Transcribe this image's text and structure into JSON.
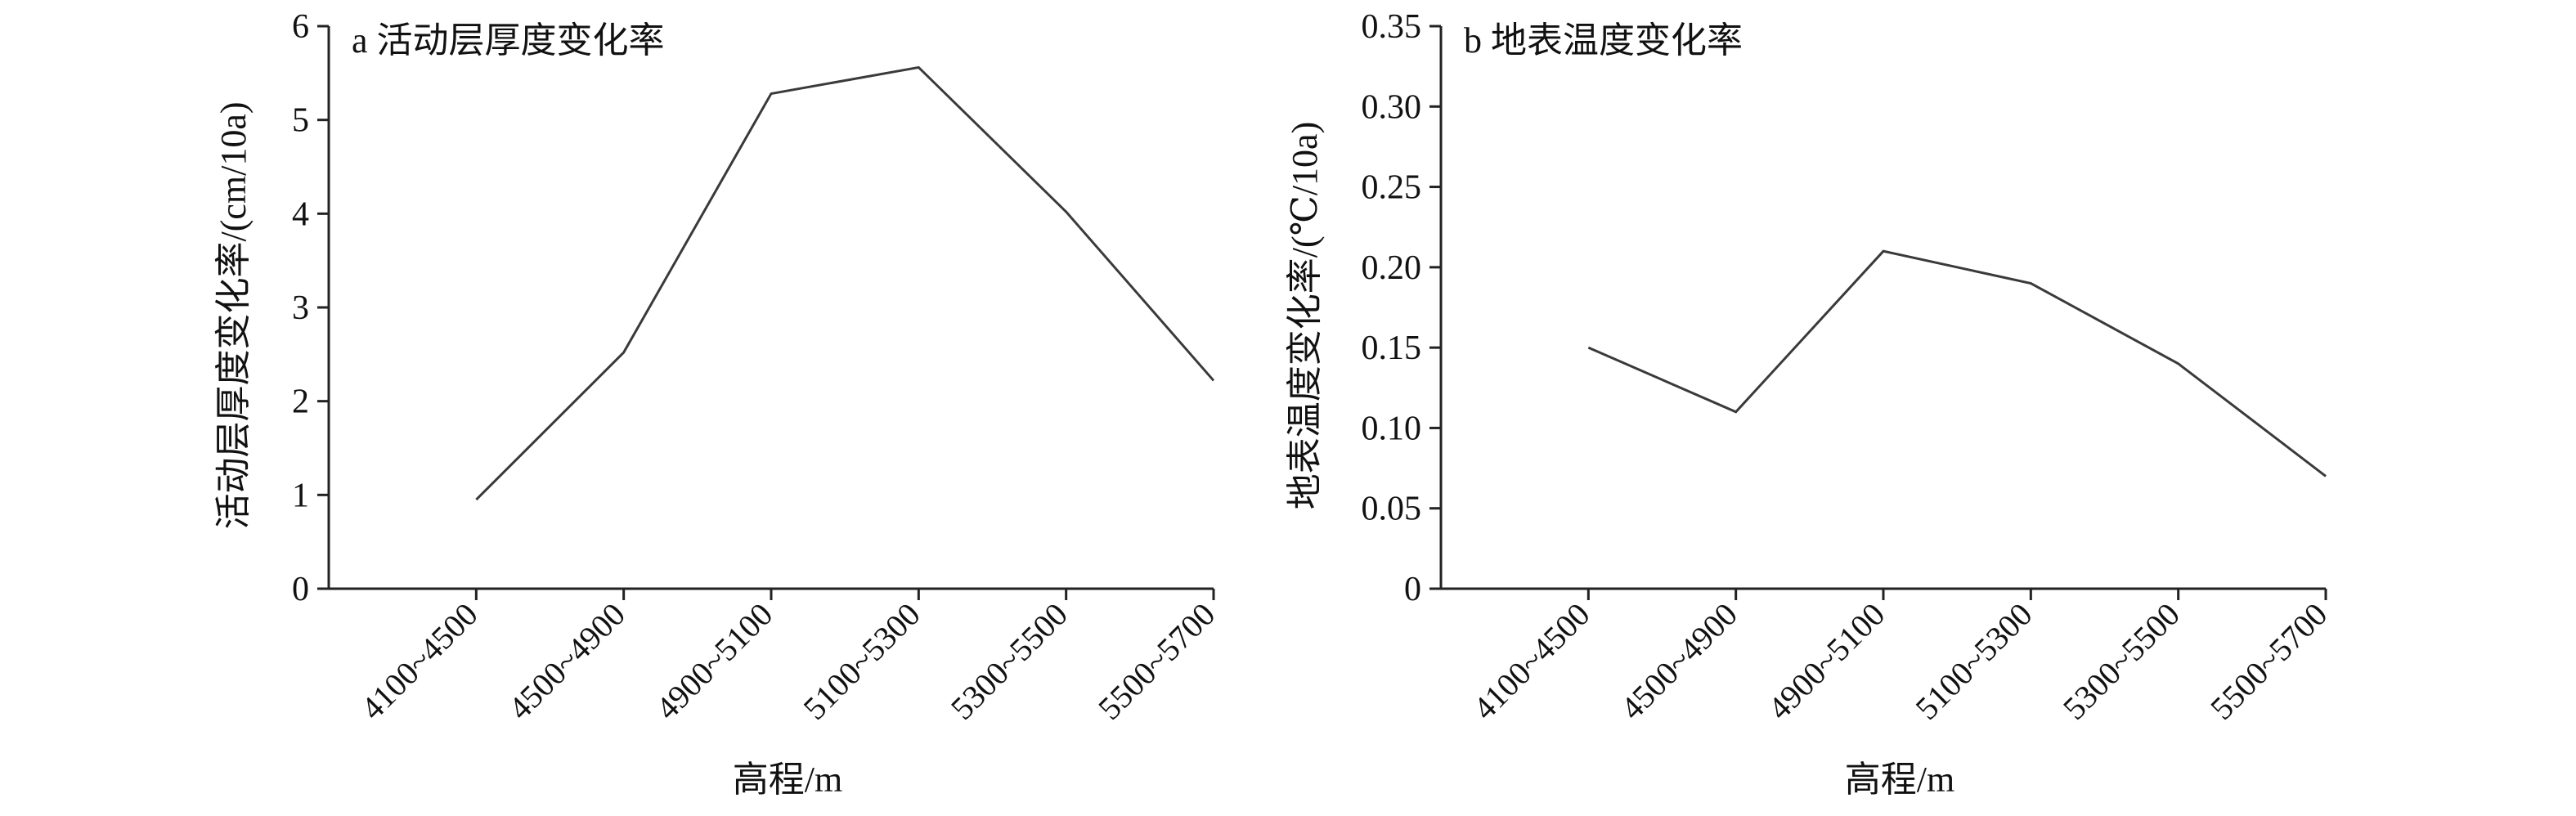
{
  "chart_data": [
    {
      "type": "line",
      "title": "a 活动层厚度变化率",
      "xlabel": "高程/m",
      "ylabel": "活动层厚度变化率/(cm/10a)",
      "categories": [
        "4100~4500",
        "4500~4900",
        "4900~5100",
        "5100~5300",
        "5300~5500",
        "5500~5700"
      ],
      "values": [
        0.95,
        2.52,
        5.28,
        5.56,
        4.02,
        2.22
      ],
      "ylim": [
        0,
        6
      ],
      "yticks": [
        "0",
        "1",
        "2",
        "3",
        "4",
        "5",
        "6"
      ],
      "grid": false,
      "color": "#3a3a3a"
    },
    {
      "type": "line",
      "title": "b 地表温度变化率",
      "xlabel": "高程/m",
      "ylabel": "地表温度变化率/(℃/10a)",
      "categories": [
        "4100~4500",
        "4500~4900",
        "4900~5100",
        "5100~5300",
        "5300~5500",
        "5500~5700"
      ],
      "values": [
        0.15,
        0.11,
        0.21,
        0.19,
        0.14,
        0.07
      ],
      "ylim": [
        0,
        0.35
      ],
      "yticks": [
        "0",
        "0.05",
        "0.10",
        "0.15",
        "0.20",
        "0.25",
        "0.30",
        "0.35"
      ],
      "grid": false,
      "color": "#3a3a3a"
    }
  ]
}
